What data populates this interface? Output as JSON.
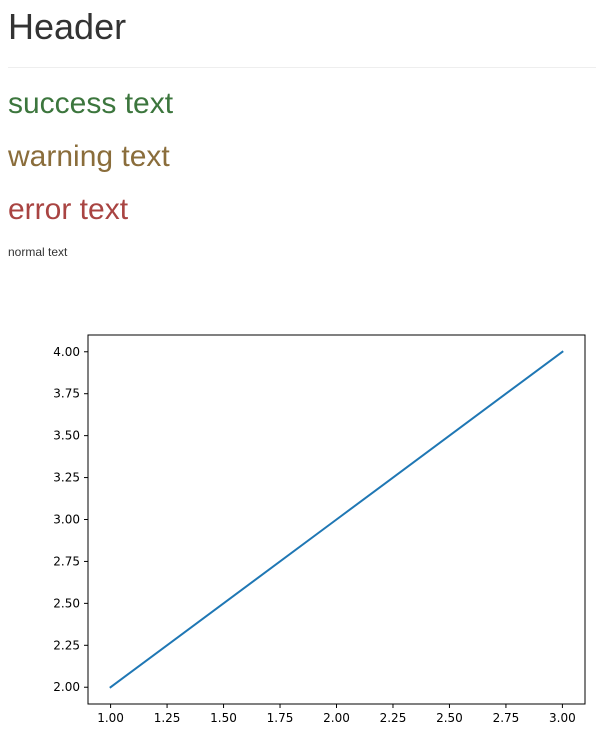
{
  "header": {
    "title": "Header"
  },
  "messages": {
    "success": {
      "text": "success text",
      "color": "#3c763d"
    },
    "warning": {
      "text": "warning text",
      "color": "#8a6d3b"
    },
    "error": {
      "text": "error text",
      "color": "#a94442"
    },
    "normal": {
      "text": "normal text"
    }
  },
  "chart_data": {
    "type": "line",
    "x": [
      1.0,
      2.0,
      3.0
    ],
    "series": [
      {
        "values": [
          2.0,
          3.0,
          4.0
        ],
        "color": "#1f77b4"
      }
    ],
    "xlim": [
      0.9,
      3.1
    ],
    "ylim": [
      1.9,
      4.1
    ],
    "xticks": [
      "1.00",
      "1.25",
      "1.50",
      "1.75",
      "2.00",
      "2.25",
      "2.50",
      "2.75",
      "3.00"
    ],
    "yticks": [
      "2.00",
      "2.25",
      "2.50",
      "2.75",
      "3.00",
      "3.25",
      "3.50",
      "3.75",
      "4.00"
    ],
    "grid": false
  }
}
